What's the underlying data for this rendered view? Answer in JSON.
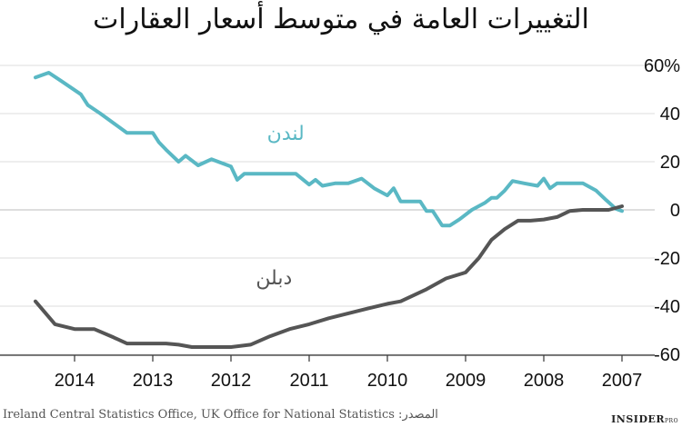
{
  "chart_data": {
    "type": "line",
    "title": "التغييرات العامة في متوسط أسعار العقارات",
    "xlabel": "",
    "ylabel": "",
    "x_ticks": [
      "2014",
      "2013",
      "2012",
      "2011",
      "2010",
      "2009",
      "2008",
      "2007"
    ],
    "x_direction": "right-to-left",
    "ylim": [
      -62,
      62
    ],
    "y_ticks": [
      60,
      40,
      20,
      0,
      -20,
      -40,
      -60
    ],
    "y_tick_labels": [
      "60%",
      "40",
      "20",
      "0",
      "-20",
      "-40",
      "-60"
    ],
    "grid": "horizontal",
    "series": [
      {
        "name": "لندن",
        "color": "#5ab8c4",
        "points": [
          [
            2007.0,
            -0.5
          ],
          [
            2007.08,
            0.5
          ],
          [
            2007.2,
            4
          ],
          [
            2007.33,
            8
          ],
          [
            2007.5,
            11
          ],
          [
            2007.67,
            11
          ],
          [
            2007.83,
            11
          ],
          [
            2007.92,
            9
          ],
          [
            2008.0,
            13
          ],
          [
            2008.08,
            10
          ],
          [
            2008.25,
            11
          ],
          [
            2008.4,
            12
          ],
          [
            2008.5,
            8
          ],
          [
            2008.6,
            5
          ],
          [
            2008.67,
            5
          ],
          [
            2008.75,
            3
          ],
          [
            2008.92,
            0
          ],
          [
            2009.08,
            -4
          ],
          [
            2009.2,
            -6.5
          ],
          [
            2009.3,
            -6.5
          ],
          [
            2009.42,
            -0.5
          ],
          [
            2009.5,
            -0.5
          ],
          [
            2009.58,
            3.5
          ],
          [
            2009.75,
            3.5
          ],
          [
            2009.83,
            3.5
          ],
          [
            2009.92,
            9
          ],
          [
            2010.0,
            6
          ],
          [
            2010.17,
            9
          ],
          [
            2010.33,
            13
          ],
          [
            2010.5,
            11
          ],
          [
            2010.67,
            11
          ],
          [
            2010.83,
            10
          ],
          [
            2010.92,
            12.5
          ],
          [
            2011.0,
            10.5
          ],
          [
            2011.17,
            15
          ],
          [
            2011.33,
            15
          ],
          [
            2011.5,
            15
          ],
          [
            2011.75,
            15
          ],
          [
            2011.83,
            15
          ],
          [
            2011.92,
            12.5
          ],
          [
            2012.0,
            18
          ],
          [
            2012.25,
            21
          ],
          [
            2012.42,
            18.5
          ],
          [
            2012.58,
            22.5
          ],
          [
            2012.67,
            20
          ],
          [
            2012.83,
            25
          ],
          [
            2012.92,
            28
          ],
          [
            2013.0,
            32
          ],
          [
            2013.17,
            32
          ],
          [
            2013.33,
            32
          ],
          [
            2013.5,
            36
          ],
          [
            2013.67,
            40
          ],
          [
            2013.83,
            43.5
          ],
          [
            2013.92,
            48
          ],
          [
            2014.17,
            53.5
          ],
          [
            2014.33,
            57
          ],
          [
            2014.5,
            55
          ]
        ]
      },
      {
        "name": "دبلن",
        "color": "#555555",
        "points": [
          [
            2007.0,
            1.5
          ],
          [
            2007.17,
            0
          ],
          [
            2007.33,
            0
          ],
          [
            2007.5,
            0
          ],
          [
            2007.67,
            -0.5
          ],
          [
            2007.83,
            -3
          ],
          [
            2008.0,
            -4
          ],
          [
            2008.17,
            -4.5
          ],
          [
            2008.33,
            -4.5
          ],
          [
            2008.5,
            -8
          ],
          [
            2008.67,
            -12.5
          ],
          [
            2008.83,
            -20
          ],
          [
            2009.0,
            -26
          ],
          [
            2009.25,
            -28.5
          ],
          [
            2009.5,
            -33
          ],
          [
            2009.83,
            -38
          ],
          [
            2010.0,
            -39
          ],
          [
            2010.25,
            -41
          ],
          [
            2010.5,
            -43
          ],
          [
            2010.75,
            -45
          ],
          [
            2011.0,
            -47.5
          ],
          [
            2011.25,
            -49.5
          ],
          [
            2011.5,
            -52.5
          ],
          [
            2011.75,
            -56
          ],
          [
            2012.0,
            -57
          ],
          [
            2012.25,
            -57
          ],
          [
            2012.5,
            -57
          ],
          [
            2012.67,
            -56
          ],
          [
            2012.83,
            -55.5
          ],
          [
            2013.17,
            -55.5
          ],
          [
            2013.33,
            -55.5
          ],
          [
            2013.5,
            -53
          ],
          [
            2013.75,
            -49.5
          ],
          [
            2014.0,
            -49.5
          ],
          [
            2014.25,
            -47.5
          ],
          [
            2014.5,
            -38
          ]
        ]
      }
    ]
  },
  "source_text": "Ireland Central Statistics Office, UK Office for National Statistics :المصدر",
  "brand": {
    "name": "INSIDER",
    "suffix": "PRO"
  }
}
